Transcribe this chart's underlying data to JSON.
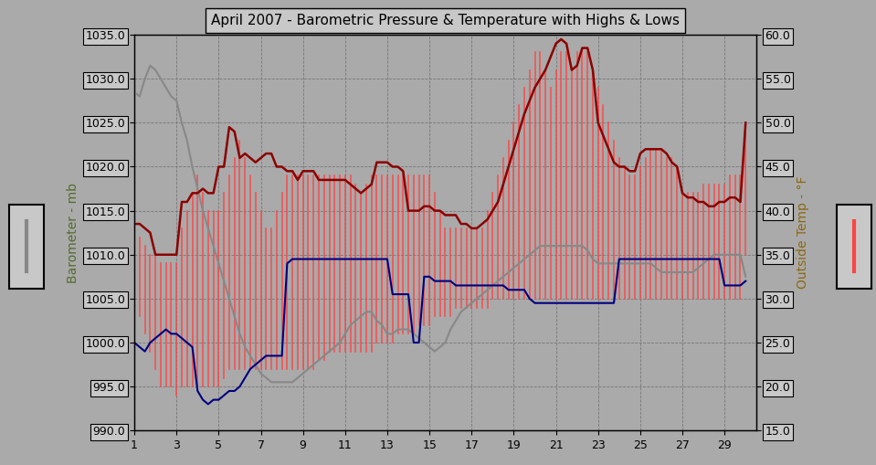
{
  "title": "April 2007 - Barometric Pressure & Temperature with Highs & Lows",
  "ylabel_left": "Barometer - mb",
  "ylabel_right": "Outside Temp - °F",
  "ylim_left": [
    990.0,
    1035.0
  ],
  "ylim_right": [
    15.0,
    60.0
  ],
  "yticks_left": [
    990.0,
    995.0,
    1000.0,
    1005.0,
    1010.0,
    1015.0,
    1020.0,
    1025.0,
    1030.0,
    1035.0
  ],
  "yticks_right": [
    15.0,
    20.0,
    25.0,
    30.0,
    35.0,
    40.0,
    45.0,
    50.0,
    55.0,
    60.0
  ],
  "xticks": [
    1,
    3,
    5,
    7,
    9,
    11,
    13,
    15,
    17,
    19,
    21,
    23,
    25,
    27,
    29
  ],
  "xlim": [
    1,
    30.5
  ],
  "background_color": "#aaaaaa",
  "plot_bg_color": "#aaaaaa",
  "grid_color": "#888888",
  "title_box_color": "#c8c8c8",
  "legend_box_color": "#c8c8c8",
  "bar_color_left": "#888888",
  "bar_color_right": "#888888",
  "pressure_hi_color": "#8b0000",
  "pressure_lo_color": "#000080",
  "temp_hi_lo_color": "#ff4444",
  "temp_avg_color": "#888888",
  "x": [
    1,
    1.25,
    1.5,
    1.75,
    2,
    2.25,
    2.5,
    2.75,
    3,
    3.25,
    3.5,
    3.75,
    4,
    4.25,
    4.5,
    4.75,
    5,
    5.25,
    5.5,
    5.75,
    6,
    6.25,
    6.5,
    6.75,
    7,
    7.25,
    7.5,
    7.75,
    8,
    8.25,
    8.5,
    8.75,
    9,
    9.25,
    9.5,
    9.75,
    10,
    10.25,
    10.5,
    10.75,
    11,
    11.25,
    11.5,
    11.75,
    12,
    12.25,
    12.5,
    12.75,
    13,
    13.25,
    13.5,
    13.75,
    14,
    14.25,
    14.5,
    14.75,
    15,
    15.25,
    15.5,
    15.75,
    16,
    16.25,
    16.5,
    16.75,
    17,
    17.25,
    17.5,
    17.75,
    18,
    18.25,
    18.5,
    18.75,
    19,
    19.25,
    19.5,
    19.75,
    20,
    20.25,
    20.5,
    20.75,
    21,
    21.25,
    21.5,
    21.75,
    22,
    22.25,
    22.5,
    22.75,
    23,
    23.25,
    23.5,
    23.75,
    24,
    24.25,
    24.5,
    24.75,
    25,
    25.25,
    25.5,
    25.75,
    26,
    26.25,
    26.5,
    26.75,
    27,
    27.25,
    27.5,
    27.75,
    28,
    28.25,
    28.5,
    28.75,
    29,
    29.25,
    29.5,
    29.75,
    30
  ],
  "pressure_hi": [
    1013.5,
    1013.5,
    1013.0,
    1012.5,
    1010.0,
    1010.0,
    1010.0,
    1010.0,
    1010.0,
    1016.0,
    1016.0,
    1017.0,
    1017.0,
    1017.5,
    1017.0,
    1017.0,
    1020.0,
    1020.0,
    1024.5,
    1024.0,
    1021.0,
    1021.5,
    1021.0,
    1020.5,
    1021.0,
    1021.5,
    1021.5,
    1020.0,
    1020.0,
    1019.5,
    1019.5,
    1018.5,
    1019.5,
    1019.5,
    1019.5,
    1018.5,
    1018.5,
    1018.5,
    1018.5,
    1018.5,
    1018.5,
    1018.0,
    1017.5,
    1017.0,
    1017.5,
    1018.0,
    1020.5,
    1020.5,
    1020.5,
    1020.0,
    1020.0,
    1019.5,
    1015.0,
    1015.0,
    1015.0,
    1015.5,
    1015.5,
    1015.0,
    1015.0,
    1014.5,
    1014.5,
    1014.5,
    1013.5,
    1013.5,
    1013.0,
    1013.0,
    1013.5,
    1014.0,
    1015.0,
    1016.0,
    1018.0,
    1020.0,
    1022.0,
    1024.0,
    1026.0,
    1027.5,
    1029.0,
    1030.0,
    1031.0,
    1032.5,
    1034.0,
    1034.5,
    1034.0,
    1031.0,
    1031.5,
    1033.5,
    1033.5,
    1031.0,
    1025.0,
    1023.5,
    1022.0,
    1020.5,
    1020.0,
    1020.0,
    1019.5,
    1019.5,
    1021.5,
    1022.0,
    1022.0,
    1022.0,
    1022.0,
    1021.5,
    1020.5,
    1020.0,
    1017.0,
    1016.5,
    1016.5,
    1016.0,
    1016.0,
    1015.5,
    1015.5,
    1016.0,
    1016.0,
    1016.5,
    1016.5,
    1016.0,
    1025.0
  ],
  "pressure_lo": [
    1000.0,
    999.5,
    999.0,
    1000.0,
    1000.5,
    1001.0,
    1001.5,
    1001.0,
    1001.0,
    1000.5,
    1000.0,
    999.5,
    994.5,
    993.5,
    993.0,
    993.5,
    993.5,
    994.0,
    994.5,
    994.5,
    995.0,
    996.0,
    997.0,
    997.5,
    998.0,
    998.5,
    998.5,
    998.5,
    998.5,
    1009.0,
    1009.5,
    1009.5,
    1009.5,
    1009.5,
    1009.5,
    1009.5,
    1009.5,
    1009.5,
    1009.5,
    1009.5,
    1009.5,
    1009.5,
    1009.5,
    1009.5,
    1009.5,
    1009.5,
    1009.5,
    1009.5,
    1009.5,
    1005.5,
    1005.5,
    1005.5,
    1005.5,
    1000.0,
    1000.0,
    1007.5,
    1007.5,
    1007.0,
    1007.0,
    1007.0,
    1007.0,
    1006.5,
    1006.5,
    1006.5,
    1006.5,
    1006.5,
    1006.5,
    1006.5,
    1006.5,
    1006.5,
    1006.5,
    1006.0,
    1006.0,
    1006.0,
    1006.0,
    1005.0,
    1004.5,
    1004.5,
    1004.5,
    1004.5,
    1004.5,
    1004.5,
    1004.5,
    1004.5,
    1004.5,
    1004.5,
    1004.5,
    1004.5,
    1004.5,
    1004.5,
    1004.5,
    1004.5,
    1009.5,
    1009.5,
    1009.5,
    1009.5,
    1009.5,
    1009.5,
    1009.5,
    1009.5,
    1009.5,
    1009.5,
    1009.5,
    1009.5,
    1009.5,
    1009.5,
    1009.5,
    1009.5,
    1009.5,
    1009.5,
    1009.5,
    1009.5,
    1006.5,
    1006.5,
    1006.5,
    1006.5,
    1007.0
  ],
  "temp_hi": [
    38,
    37,
    36,
    35,
    35,
    34,
    34,
    34,
    34,
    38,
    40,
    42,
    44,
    42,
    40,
    40,
    40,
    42,
    44,
    46,
    48,
    46,
    44,
    42,
    40,
    38,
    38,
    40,
    42,
    44,
    44,
    44,
    44,
    44,
    44,
    44,
    44,
    44,
    44,
    44,
    44,
    44,
    43,
    42,
    43,
    44,
    44,
    44,
    44,
    44,
    44,
    44,
    44,
    44,
    44,
    44,
    44,
    42,
    40,
    38,
    38,
    38,
    38,
    38,
    38,
    38,
    38,
    40,
    42,
    44,
    46,
    48,
    50,
    52,
    54,
    56,
    58,
    58,
    56,
    54,
    56,
    58,
    58,
    56,
    58,
    58,
    58,
    56,
    54,
    52,
    50,
    48,
    46,
    45,
    44,
    44,
    45,
    46,
    47,
    47,
    47,
    46,
    46,
    45,
    42,
    42,
    42,
    42,
    43,
    43,
    43,
    43,
    43,
    44,
    44,
    44,
    50
  ],
  "temp_lo": [
    30,
    28,
    26,
    24,
    22,
    20,
    20,
    20,
    19,
    20,
    20,
    20,
    20,
    20,
    20,
    20,
    20,
    21,
    22,
    22,
    22,
    22,
    22,
    22,
    22,
    22,
    22,
    22,
    22,
    22,
    22,
    22,
    22,
    22,
    22,
    23,
    23,
    24,
    24,
    24,
    24,
    24,
    24,
    24,
    24,
    24,
    25,
    25,
    25,
    25,
    26,
    26,
    26,
    26,
    27,
    27,
    27,
    28,
    28,
    28,
    28,
    29,
    29,
    29,
    29,
    29,
    29,
    29,
    30,
    30,
    30,
    30,
    30,
    30,
    30,
    30,
    30,
    30,
    30,
    30,
    30,
    30,
    30,
    30,
    30,
    30,
    30,
    30,
    30,
    30,
    30,
    30,
    30,
    30,
    30,
    30,
    30,
    30,
    30,
    30,
    30,
    30,
    30,
    30,
    30,
    30,
    30,
    30,
    30,
    30,
    30,
    30,
    30,
    30,
    30,
    30,
    35
  ],
  "temp_avg": [
    1028.5,
    1028.0,
    1030.0,
    1031.5,
    1031.0,
    1030.0,
    1029.0,
    1028.0,
    1027.5,
    1025.0,
    1023.0,
    1020.0,
    1017.5,
    1015.0,
    1013.0,
    1011.0,
    1009.0,
    1007.0,
    1005.0,
    1003.0,
    1001.0,
    999.5,
    998.5,
    997.5,
    996.5,
    996.0,
    995.5,
    995.5,
    995.5,
    995.5,
    995.5,
    996.0,
    996.5,
    997.0,
    997.5,
    998.0,
    998.5,
    999.0,
    999.5,
    1000.0,
    1001.0,
    1002.0,
    1002.5,
    1003.0,
    1003.5,
    1003.5,
    1002.5,
    1002.0,
    1001.0,
    1001.0,
    1001.5,
    1001.5,
    1001.5,
    1001.0,
    1000.5,
    1000.0,
    999.5,
    999.0,
    999.5,
    1000.0,
    1001.5,
    1002.5,
    1003.5,
    1004.0,
    1004.5,
    1005.0,
    1005.5,
    1006.0,
    1006.5,
    1007.0,
    1007.5,
    1008.0,
    1008.5,
    1009.0,
    1009.5,
    1010.0,
    1010.5,
    1011.0,
    1011.0,
    1011.0,
    1011.0,
    1011.0,
    1011.0,
    1011.0,
    1011.0,
    1011.0,
    1010.5,
    1009.5,
    1009.0,
    1009.0,
    1009.0,
    1009.0,
    1009.0,
    1009.0,
    1009.0,
    1009.0,
    1009.0,
    1009.0,
    1009.0,
    1008.5,
    1008.0,
    1008.0,
    1008.0,
    1008.0,
    1008.0,
    1008.0,
    1008.0,
    1008.5,
    1009.0,
    1009.5,
    1010.0,
    1010.0,
    1010.0,
    1010.0,
    1010.0,
    1010.0,
    1007.5
  ]
}
